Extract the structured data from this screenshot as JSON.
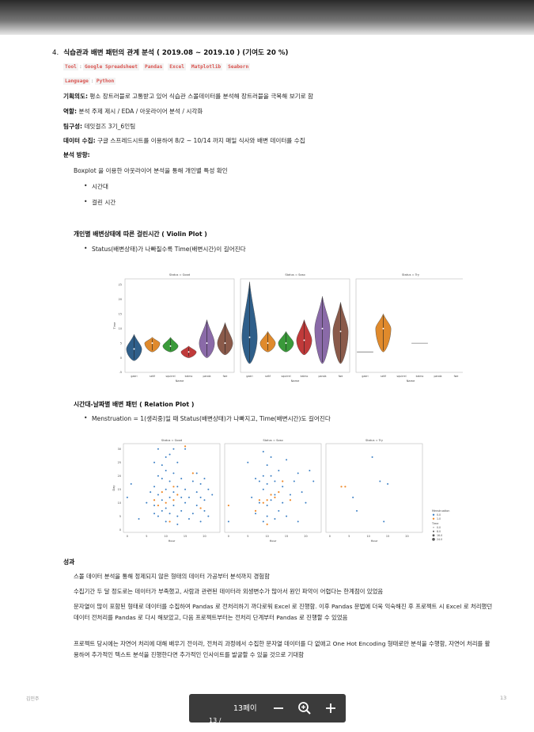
{
  "section": {
    "number": "4.",
    "title": "식습관과 배변 패턴의 관계 분석 ( 2019.08 ~ 2019.10 ) (기여도 20 %)"
  },
  "tools": {
    "label": "Tool",
    "items": [
      "Google Spreadsheet",
      "Pandas",
      "Excel",
      "Matplotlib",
      "Seaborn"
    ]
  },
  "language": {
    "label": "Language",
    "value": "Python"
  },
  "fields": [
    {
      "label": "기획의도",
      "value": "평소 장트러블로 고통받고 있어 식습관 스몰데이터를 분석해 장트러블을 극복해 보기로 함"
    },
    {
      "label": "역할",
      "value": "분석 주제 제시 / EDA / 아웃라이어 분석 / 시각화"
    },
    {
      "label": "팀구성",
      "value": "데잇걸즈 3기_6인팀"
    },
    {
      "label": "데이터 수집",
      "value": "구글 스프레드시트를 이용하여 8/2 ~ 10/14 까지 매일 식사와 배변 데이터를 수집"
    },
    {
      "label": "분석 방향",
      "value": ""
    }
  ],
  "direction_text": "Boxplot 을 이용한 아웃라이어 분석을 통해 개인별 특성 확인",
  "direction_bullets": [
    "시간대",
    "걸린 시간"
  ],
  "violin_section": {
    "title": "개인별 배변상태에 따른 걸린시간 ( Violin Plot )",
    "bullet": "Status(배변상태)가 나빠질수록 Time(배변시간)이 길어진다"
  },
  "relation_section": {
    "title": "시간대-날짜별 배변 패턴 ( Relation Plot )",
    "bullet": "Menstruation = 1(생리중)일 때 Status(배변상태)가 나빠지고, Time(배변시간)도 길어진다"
  },
  "results": {
    "title": "성과",
    "paragraphs": [
      "스몰 데이터 분석을 통해 정제되지 않은 형태의 데이터 가공부터 분석까지 경험함",
      "수집기간 두 달 정도로는 데이터가 부족했고, 사람과 관련된 데이터라 외생변수가 많아서 원인 파악이 어렵다는 한계점이 있었음",
      "문자열이 많이 포함된 형태로 데이터를 수집하여 Pandas 로 전처리하기 까다로워 Excel 로 진행함. 이후 Pandas 문법에 더욱 익숙해진 후 프로젝트 시 Excel 로 처리했던 데이터 전처리를 Pandas 로 다시 해보았고, 다음 프로젝트부터는 전처리 단계부터 Pandas 로 진행할 수 있었음",
      "프로젝트 당시에는 자연어 처리에 대해 배우기 전이라, 전처리 과정에서 수집한 문자열 데이터를 다 없애고 One Hot Encoding 형태로만 분석을 수행함, 자연어 처리를 활용하여 추가적인 텍스트 분석을 진행한다면 추가적인 인사이트를 발굴할 수 있을 것으로 기대함"
    ]
  },
  "footer": {
    "author": "김민주",
    "page": "13"
  },
  "zoom": {
    "page_label": "13페이",
    "page_label2": "13   /"
  },
  "chart_data": [
    {
      "type": "violin",
      "panels": [
        "Status = Good",
        "Status = Soso",
        "Status = Try"
      ],
      "categories": [
        "gaeri",
        "seltf",
        "squirrel",
        "kaimo",
        "panda",
        "fwe"
      ],
      "xlabel": "Name",
      "ylabel": "Time",
      "ylim": [
        -5,
        27
      ],
      "yticks": [
        -5,
        0,
        5,
        10,
        15,
        20,
        25
      ],
      "colors": [
        "#2f5f8a",
        "#e08a2c",
        "#3a9a3a",
        "#c03a3a",
        "#8a6aa8",
        "#8a5a4a"
      ],
      "series": [
        {
          "name": "Status = Good",
          "medians": [
            3,
            5,
            4,
            2,
            5,
            5
          ],
          "ranges": [
            [
              -1,
              8
            ],
            [
              2,
              7
            ],
            [
              2,
              7
            ],
            [
              0,
              4
            ],
            [
              0,
              13
            ],
            [
              1,
              12
            ]
          ]
        },
        {
          "name": "Status = Soso",
          "medians": [
            7,
            5,
            5,
            6,
            10,
            9
          ],
          "ranges": [
            [
              -2,
              26
            ],
            [
              2,
              9
            ],
            [
              2,
              9
            ],
            [
              1,
              13
            ],
            [
              -2,
              21
            ],
            [
              -2,
              19
            ]
          ]
        },
        {
          "name": "Status = Try",
          "medians": [
            2,
            10,
            null,
            5,
            null,
            null
          ],
          "ranges": [
            [
              2,
              2
            ],
            [
              2,
              15
            ],
            null,
            [
              5,
              5
            ],
            null,
            null
          ]
        }
      ]
    },
    {
      "type": "scatter",
      "panels": [
        "Status = Good",
        "Status = Soso",
        "Status = Try"
      ],
      "xlabel": "Hour",
      "ylabel": "Day",
      "xlim": [
        -1,
        24
      ],
      "ylim": [
        -1,
        32
      ],
      "xticks": [
        0,
        5,
        10,
        15,
        20
      ],
      "yticks": [
        0,
        5,
        10,
        15,
        20,
        25,
        30
      ],
      "legend": {
        "title1": "Menstruation",
        "items1": [
          {
            "label": "0.0",
            "color": "#3b7fc4"
          },
          {
            "label": "1.0",
            "color": "#ef8a2a"
          }
        ],
        "title2": "Time",
        "items2": [
          "0.0",
          "8.0",
          "16.0",
          "24.0"
        ]
      },
      "series": [
        {
          "name": "Status = Good",
          "menstruation0": [
            [
              0,
              12
            ],
            [
              1,
              17
            ],
            [
              3,
              4
            ],
            [
              5,
              10
            ],
            [
              6,
              14
            ],
            [
              7,
              6
            ],
            [
              7,
              9
            ],
            [
              7,
              16
            ],
            [
              8,
              20
            ],
            [
              8,
              13
            ],
            [
              8,
              5
            ],
            [
              9,
              7
            ],
            [
              9,
              11
            ],
            [
              9,
              19
            ],
            [
              9,
              24
            ],
            [
              10,
              3
            ],
            [
              10,
              8
            ],
            [
              10,
              15
            ],
            [
              10,
              22
            ],
            [
              11,
              6
            ],
            [
              11,
              12
            ],
            [
              11,
              18
            ],
            [
              11,
              28
            ],
            [
              12,
              9
            ],
            [
              12,
              14
            ],
            [
              12,
              21
            ],
            [
              13,
              2
            ],
            [
              13,
              5
            ],
            [
              13,
              16
            ],
            [
              13,
              25
            ],
            [
              14,
              7
            ],
            [
              14,
              12
            ],
            [
              14,
              19
            ],
            [
              15,
              10
            ],
            [
              15,
              15
            ],
            [
              15,
              30
            ],
            [
              16,
              4
            ],
            [
              16,
              12
            ],
            [
              17,
              6
            ],
            [
              17,
              18
            ],
            [
              18,
              9
            ],
            [
              18,
              14
            ],
            [
              18,
              21
            ],
            [
              19,
              3
            ],
            [
              19,
              12
            ],
            [
              19,
              17
            ],
            [
              20,
              7
            ],
            [
              20,
              11
            ],
            [
              20,
              19
            ],
            [
              21,
              5
            ],
            [
              21,
              15
            ],
            [
              22,
              13
            ],
            [
              8,
              30
            ],
            [
              12,
              30
            ],
            [
              10,
              27
            ],
            [
              7,
              25
            ]
          ],
          "menstruation1": [
            [
              7,
              11
            ],
            [
              8,
              9
            ],
            [
              9,
              14
            ],
            [
              10,
              10
            ],
            [
              11,
              3
            ],
            [
              12,
              11
            ],
            [
              13,
              13
            ],
            [
              15,
              31
            ],
            [
              17,
              21
            ],
            [
              19,
              8
            ],
            [
              12,
              16
            ]
          ]
        },
        {
          "name": "Status = Soso",
          "menstruation0": [
            [
              0,
              3
            ],
            [
              5,
              25
            ],
            [
              6,
              12
            ],
            [
              7,
              6
            ],
            [
              8,
              10
            ],
            [
              9,
              15
            ],
            [
              9,
              20
            ],
            [
              9,
              29
            ],
            [
              10,
              5
            ],
            [
              10,
              9
            ],
            [
              10,
              17
            ],
            [
              10,
              24
            ],
            [
              11,
              11
            ],
            [
              11,
              20
            ],
            [
              11,
              27
            ],
            [
              12,
              4
            ],
            [
              12,
              13
            ],
            [
              12,
              18
            ],
            [
              13,
              7
            ],
            [
              13,
              22
            ],
            [
              14,
              10
            ],
            [
              14,
              16
            ],
            [
              15,
              5
            ],
            [
              15,
              26
            ],
            [
              16,
              13
            ],
            [
              17,
              18
            ],
            [
              18,
              3
            ],
            [
              18,
              21
            ],
            [
              19,
              14
            ],
            [
              20,
              10
            ],
            [
              21,
              22
            ],
            [
              22,
              18
            ],
            [
              8,
              18
            ],
            [
              7,
              19
            ],
            [
              9,
              3
            ]
          ],
          "menstruation1": [
            [
              0,
              9
            ],
            [
              7,
              7
            ],
            [
              8,
              11
            ],
            [
              9,
              10
            ],
            [
              10,
              11
            ],
            [
              11,
              13
            ],
            [
              12,
              12
            ],
            [
              13,
              14
            ],
            [
              14,
              18
            ],
            [
              16,
              11
            ],
            [
              10,
              2
            ]
          ]
        },
        {
          "name": "Status = Try",
          "menstruation0": [
            [
              6,
              12
            ],
            [
              7,
              7
            ],
            [
              11,
              27
            ],
            [
              13,
              18
            ],
            [
              14,
              3
            ],
            [
              15,
              17
            ]
          ],
          "menstruation1": [
            [
              3,
              16
            ],
            [
              4,
              16
            ]
          ]
        }
      ]
    }
  ]
}
